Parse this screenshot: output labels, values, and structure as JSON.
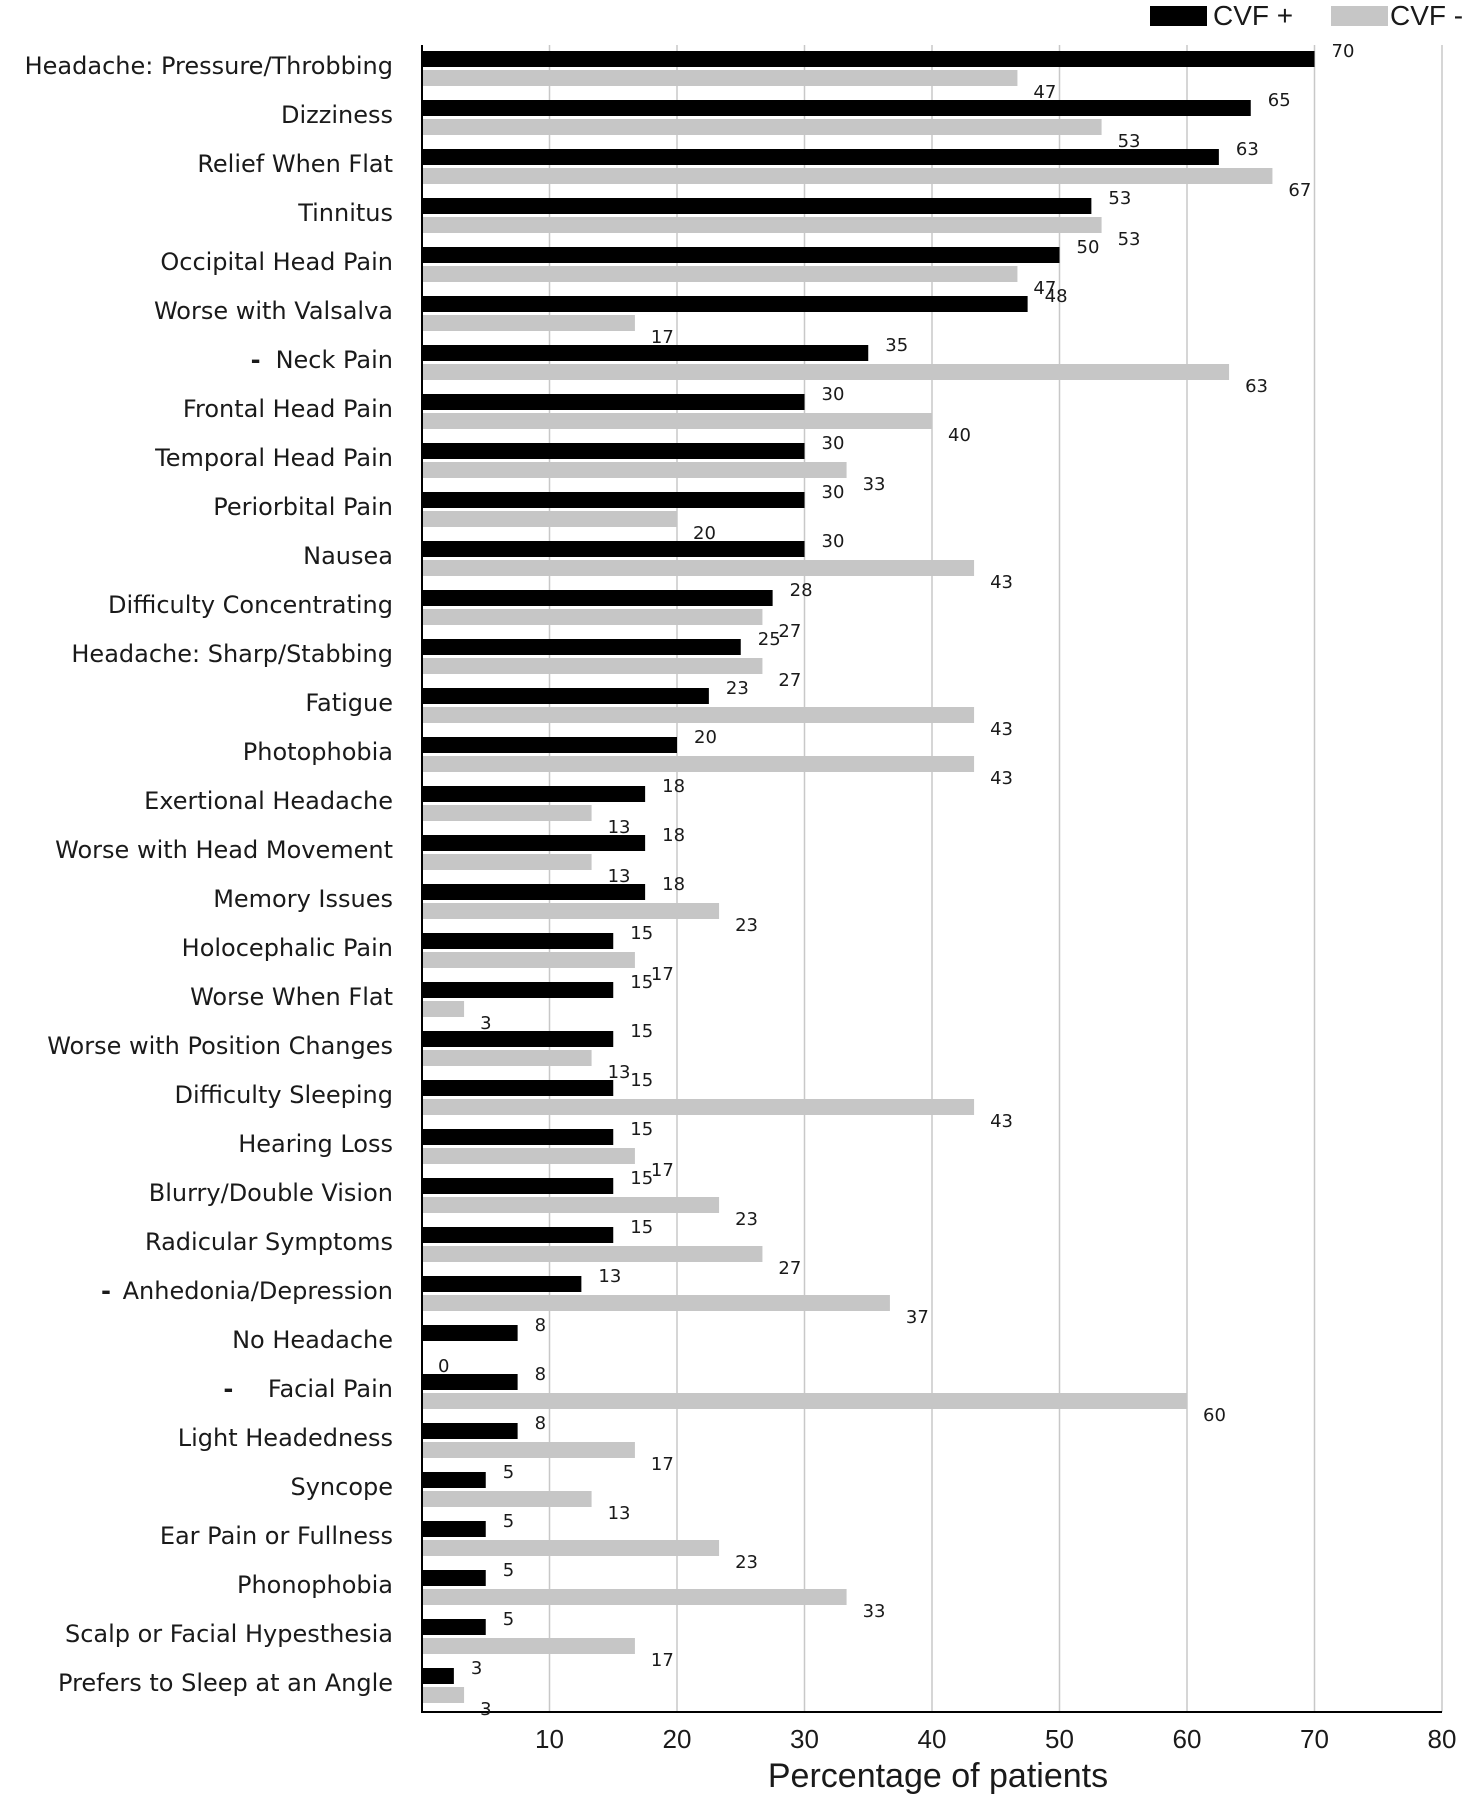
{
  "chart_data": {
    "type": "bar",
    "orientation": "horizontal",
    "xlabel": "Percentage of patients",
    "xlim": [
      0,
      80
    ],
    "xticks": [
      10,
      20,
      30,
      40,
      50,
      60,
      70,
      80
    ],
    "grid": true,
    "legend_placement": "top-right",
    "categories": [
      "Headache: Pressure/Throbbing",
      "Dizziness",
      "Relief When Flat",
      "Tinnitus",
      "Occipital Head Pain",
      "Worse with Valsalva",
      "Neck Pain",
      "Frontal Head Pain",
      "Temporal Head Pain",
      "Periorbital Pain",
      "Nausea",
      "Difficulty Concentrating",
      "Headache: Sharp/Stabbing",
      "Fatigue",
      "Photophobia",
      "Exertional Headache",
      "Worse with Head Movement",
      "Memory Issues",
      "Holocephalic  Pain",
      "Worse When Flat",
      "Worse with Position Changes",
      "Difficulty Sleeping",
      "Hearing Loss",
      "Blurry/Double Vision",
      "Radicular Symptoms",
      "Anhedonia/Depression",
      "No Headache",
      "Facial Pain",
      "Light Headedness",
      "Syncope",
      "Ear Pain or Fullness",
      "Phonophobia",
      "Scalp or Facial Hypesthesia",
      "Prefers to Sleep at an Angle"
    ],
    "category_marks": [
      "+",
      "",
      "",
      "",
      "",
      "",
      "-",
      "",
      "",
      "",
      "",
      "",
      "",
      "",
      "",
      "",
      "",
      "",
      "",
      "",
      "",
      "",
      "",
      "",
      "",
      "-",
      "",
      "-",
      "",
      "",
      "",
      "",
      "",
      ""
    ],
    "series": [
      {
        "name": "CVF +",
        "color": "#000000",
        "values": [
          70,
          65,
          63,
          53,
          50,
          48,
          35,
          30,
          30,
          30,
          30,
          28,
          25,
          23,
          20,
          18,
          18,
          18,
          15,
          15,
          15,
          15,
          15,
          15,
          15,
          13,
          8,
          8,
          8,
          5,
          5,
          5,
          5,
          3
        ],
        "plot_values": [
          70,
          65,
          62.5,
          52.5,
          50,
          47.5,
          35,
          30,
          30,
          30,
          30,
          27.5,
          25,
          22.5,
          20,
          17.5,
          17.5,
          17.5,
          15,
          15,
          15,
          15,
          15,
          15,
          15,
          12.5,
          7.5,
          7.5,
          7.5,
          5,
          5,
          5,
          5,
          2.5
        ]
      },
      {
        "name": "CVF -",
        "color": "#c6c6c6",
        "values": [
          47,
          53,
          67,
          53,
          47,
          17,
          63,
          40,
          33,
          20,
          43,
          27,
          27,
          43,
          43,
          13,
          13,
          23,
          17,
          3,
          13,
          43,
          17,
          23,
          27,
          37,
          0,
          60,
          17,
          13,
          23,
          33,
          17,
          3
        ],
        "plot_values": [
          46.7,
          53.3,
          66.7,
          53.3,
          46.7,
          16.7,
          63.3,
          40,
          33.3,
          20,
          43.3,
          26.7,
          26.7,
          43.3,
          43.3,
          13.3,
          13.3,
          23.3,
          16.7,
          3.3,
          13.3,
          43.3,
          16.7,
          23.3,
          26.7,
          36.7,
          0,
          60,
          16.7,
          13.3,
          23.3,
          33.3,
          16.7,
          3.3
        ]
      }
    ]
  }
}
